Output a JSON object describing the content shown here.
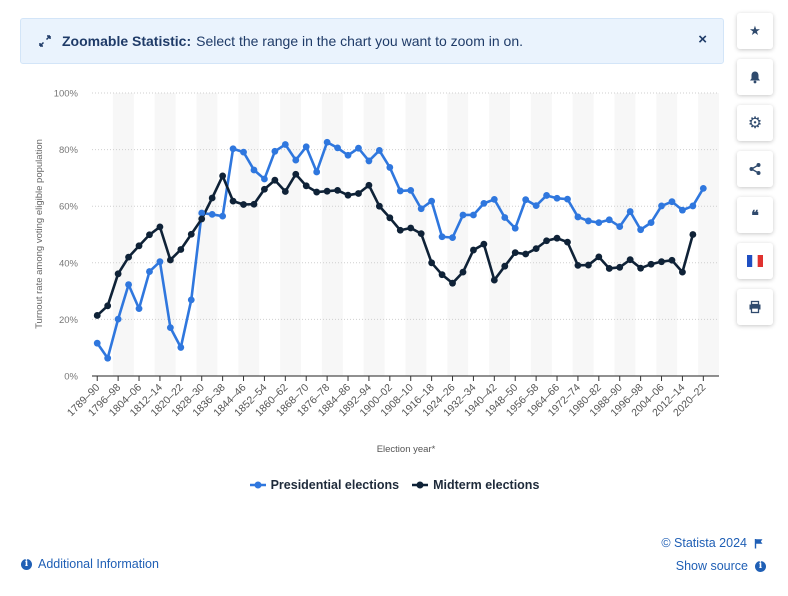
{
  "banner": {
    "title": "Zoomable Statistic:",
    "message": "Select the range in the chart you want to zoom in on.",
    "close_glyph": "×"
  },
  "sidebar": {
    "buttons": [
      {
        "icon": "star-icon",
        "glyph": "★"
      },
      {
        "icon": "bell-icon",
        "glyph": ""
      },
      {
        "icon": "gear-icon",
        "glyph": "⚙"
      },
      {
        "icon": "share-icon",
        "glyph": ""
      },
      {
        "icon": "quote-icon",
        "glyph": "❝"
      },
      {
        "icon": "french-flag-icon",
        "glyph": ""
      },
      {
        "icon": "print-icon",
        "glyph": "🖶"
      }
    ]
  },
  "footer": {
    "additional_info": "Additional Information",
    "copyright": "© Statista 2024",
    "show_source": "Show source"
  },
  "colors": {
    "presidential": "#2f77de",
    "midterm": "#0f2237",
    "link": "#1f5fb5"
  },
  "chart_data": {
    "type": "line",
    "xlabel": "Election year*",
    "ylabel": "Turnout rate among voting eligible population",
    "ylim": [
      0,
      100
    ],
    "yticks": [
      "0%",
      "20%",
      "40%",
      "60%",
      "80%",
      "100%"
    ],
    "grid": "horizontal dotted",
    "legend_position": "bottom-center",
    "tick_labels": [
      "1789–90",
      "1796–98",
      "1804–06",
      "1812–14",
      "1820–22",
      "1828–30",
      "1836–38",
      "1844–46",
      "1852–54",
      "1860–62",
      "1868–70",
      "1876–78",
      "1884–86",
      "1892–94",
      "1900–02",
      "1908–10",
      "1916–18",
      "1924–26",
      "1932–34",
      "1940–42",
      "1948–50",
      "1956–58",
      "1964–66",
      "1972–74",
      "1980–82",
      "1988–90",
      "1996–98",
      "2004–06",
      "2012–14",
      "2020–22"
    ],
    "series": [
      {
        "name": "Presidential elections",
        "values": [
          11.6,
          6.3,
          20.1,
          32.3,
          23.8,
          36.9,
          40.4,
          17.1,
          10.1,
          26.9,
          57.6,
          57.1,
          56.5,
          80.3,
          79.1,
          72.8,
          69.6,
          79.4,
          81.8,
          76.3,
          81.0,
          72.1,
          82.6,
          80.6,
          78.0,
          80.5,
          76.0,
          79.7,
          73.7,
          65.4,
          65.6,
          59.1,
          61.8,
          49.2,
          48.9,
          56.9,
          56.9,
          61.0,
          62.4,
          56.0,
          52.2,
          62.3,
          60.2,
          63.8,
          62.8,
          62.5,
          56.2,
          54.8,
          54.2,
          55.2,
          52.8,
          58.1,
          51.7,
          54.2,
          60.1,
          61.6,
          58.6,
          60.1,
          66.3
        ]
      },
      {
        "name": "Midterm elections",
        "values": [
          21.4,
          24.8,
          36.1,
          42.0,
          46.0,
          49.9,
          52.7,
          41.0,
          44.7,
          50.1,
          55.5,
          62.9,
          70.7,
          61.8,
          60.6,
          60.7,
          66.0,
          69.2,
          65.2,
          71.3,
          67.2,
          65.0,
          65.3,
          65.6,
          63.9,
          64.5,
          67.4,
          60.0,
          55.9,
          51.5,
          52.3,
          50.3,
          40.0,
          35.8,
          32.8,
          36.7,
          44.5,
          46.6,
          33.9,
          38.8,
          43.6,
          43.1,
          45.0,
          47.8,
          48.7,
          47.3,
          39.1,
          39.2,
          42.1,
          38.0,
          38.4,
          41.1,
          38.1,
          39.5,
          40.4,
          40.9,
          36.7,
          50.0
        ]
      }
    ]
  }
}
